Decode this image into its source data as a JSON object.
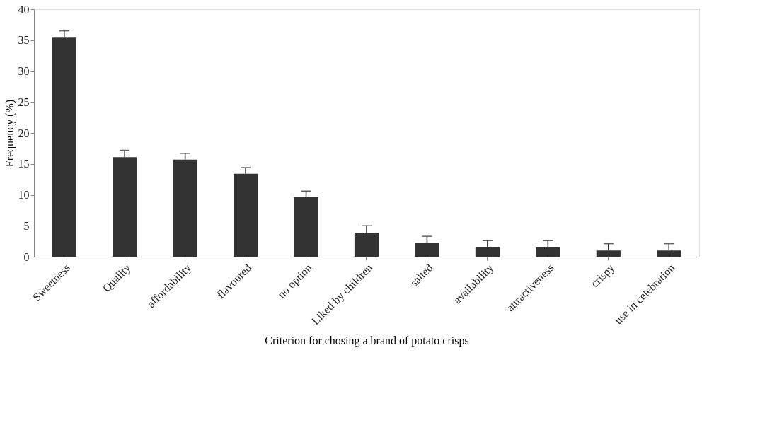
{
  "chart_data": {
    "type": "bar",
    "xlabel": "Criterion for chosing a brand of potato crisps",
    "ylabel": "Frequency (%)",
    "categories": [
      "Sweetness",
      "Quality",
      "affordability",
      "flavoured",
      "no option",
      "Liked by children",
      "salted",
      "availability",
      "attractiveness",
      "crispy",
      "use in celebration"
    ],
    "values": [
      35.4,
      16.1,
      15.7,
      13.4,
      9.6,
      3.9,
      2.2,
      1.5,
      1.5,
      1.0,
      1.0
    ],
    "errors": [
      [
        35.4,
        36.5
      ],
      [
        16.1,
        17.2
      ],
      [
        15.7,
        16.7
      ],
      [
        13.4,
        14.4
      ],
      [
        9.6,
        10.6
      ],
      [
        3.9,
        5.0
      ],
      [
        2.2,
        3.3
      ],
      [
        1.5,
        2.6
      ],
      [
        1.5,
        2.6
      ],
      [
        1.0,
        2.1
      ],
      [
        1.0,
        2.1
      ]
    ],
    "color": "#333333",
    "ylim": [
      0,
      40
    ],
    "yticks": [
      0,
      5,
      10,
      15,
      20,
      25,
      30,
      35,
      40
    ],
    "grid": false
  }
}
